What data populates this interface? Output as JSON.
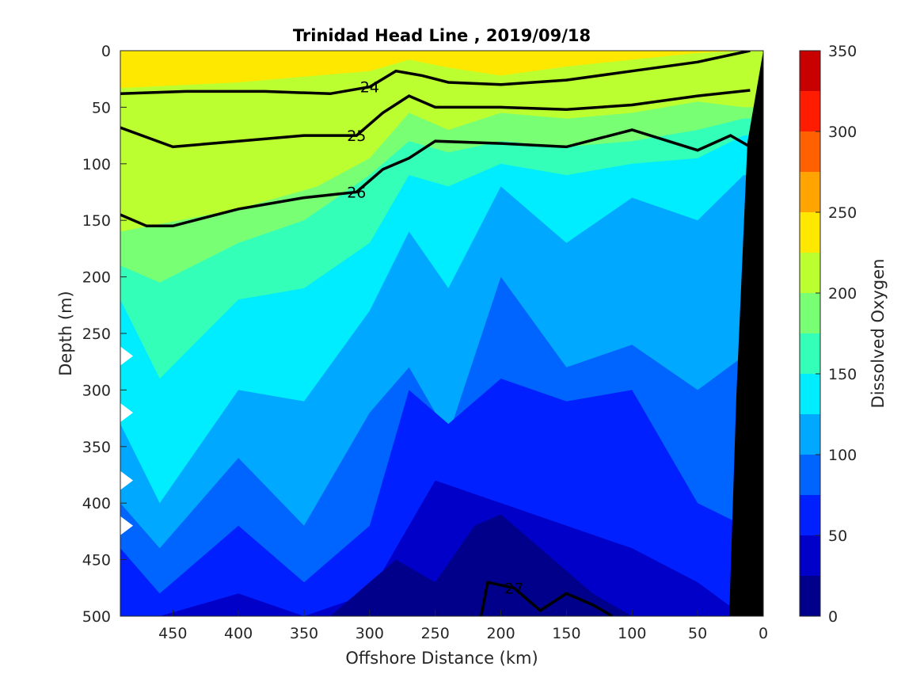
{
  "chart_data": {
    "type": "heatmap",
    "title": "Trinidad Head Line , 2019/09/18",
    "xlabel": "Offshore Distance (km)",
    "ylabel": "Depth (m)",
    "colorbar_label": "Dissolved Oxygen",
    "xlim": [
      490,
      0
    ],
    "ylim": [
      0,
      500
    ],
    "x_direction": "reversed",
    "y_direction": "reversed (depth increases downward)",
    "x_ticks": [
      450,
      400,
      350,
      300,
      250,
      200,
      150,
      100,
      50,
      0
    ],
    "y_ticks": [
      0,
      50,
      100,
      150,
      200,
      250,
      300,
      350,
      400,
      450,
      500
    ],
    "colorbar_ticks": [
      0,
      50,
      100,
      150,
      200,
      250,
      300,
      350
    ],
    "colorbar_levels": [
      0,
      25,
      50,
      75,
      100,
      125,
      150,
      175,
      200,
      225,
      250,
      275,
      300,
      325,
      350
    ],
    "colorbar_colors": [
      "#00008b",
      "#0000c8",
      "#0020ff",
      "#0064ff",
      "#00a8ff",
      "#00ecff",
      "#34ffb8",
      "#78ff74",
      "#bcff30",
      "#ffe800",
      "#ffa400",
      "#ff6000",
      "#ff1c00",
      "#c80000"
    ],
    "filled_contours": [
      {
        "level": 225,
        "profile_km": [
          490,
          400,
          340,
          300,
          270,
          240,
          200,
          150,
          100,
          50,
          15
        ],
        "depth_m": [
          33,
          28,
          22,
          18,
          8,
          15,
          22,
          14,
          8,
          2,
          0
        ]
      },
      {
        "level": 200,
        "profile_km": [
          490,
          400,
          340,
          300,
          270,
          240,
          200,
          150,
          100,
          50,
          15
        ],
        "depth_m": [
          160,
          140,
          120,
          95,
          55,
          70,
          55,
          60,
          55,
          45,
          50
        ]
      },
      {
        "level": 175,
        "profile_km": [
          490,
          460,
          400,
          350,
          300,
          270,
          240,
          200,
          150,
          100,
          50,
          15
        ],
        "depth_m": [
          190,
          205,
          170,
          150,
          110,
          80,
          90,
          80,
          85,
          80,
          70,
          60
        ]
      },
      {
        "level": 150,
        "profile_km": [
          490,
          460,
          400,
          350,
          300,
          270,
          240,
          200,
          150,
          100,
          50,
          15
        ],
        "depth_m": [
          220,
          290,
          220,
          210,
          170,
          110,
          120,
          100,
          110,
          100,
          95,
          75
        ]
      },
      {
        "level": 125,
        "profile_km": [
          490,
          460,
          400,
          350,
          300,
          270,
          240,
          200,
          150,
          100,
          50,
          15
        ],
        "depth_m": [
          330,
          400,
          300,
          310,
          230,
          160,
          210,
          120,
          170,
          130,
          150,
          110
        ]
      },
      {
        "level": 100,
        "profile_km": [
          490,
          460,
          400,
          350,
          300,
          270,
          240,
          200,
          150,
          100,
          50,
          15
        ],
        "depth_m": [
          400,
          440,
          360,
          420,
          320,
          280,
          340,
          200,
          280,
          260,
          300,
          270
        ]
      },
      {
        "level": 75,
        "profile_km": [
          490,
          460,
          400,
          350,
          300,
          270,
          240,
          200,
          150,
          100,
          50,
          15
        ],
        "depth_m": [
          440,
          480,
          420,
          470,
          420,
          300,
          330,
          290,
          310,
          300,
          400,
          420
        ]
      },
      {
        "level": 50,
        "profile_km": [
          490,
          460,
          400,
          350,
          300,
          250,
          200,
          150,
          100,
          50,
          15
        ],
        "depth_m": [
          500,
          500,
          480,
          500,
          480,
          380,
          400,
          420,
          440,
          470,
          500
        ]
      },
      {
        "level": 25,
        "profile_km": [
          330,
          280,
          250,
          220,
          200,
          170,
          130,
          100
        ],
        "depth_m": [
          500,
          450,
          470,
          420,
          410,
          440,
          480,
          500
        ]
      }
    ],
    "density_contours": [
      {
        "label": "24",
        "bold": true,
        "profile_km": [
          490,
          440,
          380,
          330,
          300,
          280,
          260,
          240,
          200,
          150,
          100,
          50,
          10
        ],
        "depth_m": [
          38,
          36,
          36,
          38,
          32,
          18,
          22,
          28,
          30,
          26,
          18,
          10,
          0
        ]
      },
      {
        "label": "25",
        "bold": true,
        "profile_km": [
          490,
          450,
          400,
          350,
          310,
          290,
          270,
          250,
          200,
          150,
          100,
          50,
          10
        ],
        "depth_m": [
          68,
          85,
          80,
          75,
          75,
          55,
          40,
          50,
          50,
          52,
          48,
          40,
          35
        ]
      },
      {
        "label": "26",
        "bold": true,
        "profile_km": [
          490,
          470,
          450,
          400,
          350,
          310,
          290,
          270,
          250,
          200,
          150,
          100,
          50,
          25,
          10
        ],
        "depth_m": [
          145,
          155,
          155,
          140,
          130,
          125,
          105,
          95,
          80,
          82,
          85,
          70,
          88,
          75,
          85
        ]
      },
      {
        "label": "27",
        "bold": true,
        "profile_km": [
          215,
          210,
          190,
          170,
          150,
          130,
          115
        ],
        "depth_m": [
          500,
          470,
          475,
          495,
          480,
          490,
          500
        ]
      }
    ],
    "station_markers_depth_m": [
      270,
      320,
      380,
      420
    ],
    "bathymetry": "black wedge at the coast (0–25 km offshore)"
  }
}
